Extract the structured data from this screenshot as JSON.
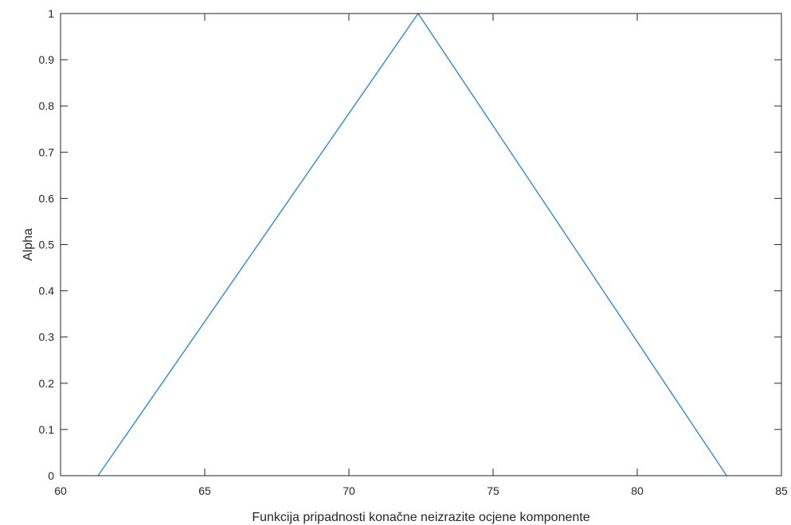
{
  "chart_data": {
    "type": "line",
    "title": "",
    "xlabel": "Funkcija pripadnosti konačne neizrazite ocjene komponente",
    "ylabel": "Alpha",
    "xlim": [
      60,
      85
    ],
    "ylim": [
      0,
      1
    ],
    "xticks": [
      "60",
      "65",
      "70",
      "75",
      "80",
      "85"
    ],
    "yticks": [
      "0",
      "0.1",
      "0.2",
      "0.3",
      "0.4",
      "0.5",
      "0.6",
      "0.7",
      "0.8",
      "0.9",
      "1"
    ],
    "grid": false,
    "series": [
      {
        "x": [
          61.3,
          72.4,
          83.1
        ],
        "y": [
          0,
          1,
          0
        ],
        "color": "#3a8fd0"
      }
    ]
  }
}
